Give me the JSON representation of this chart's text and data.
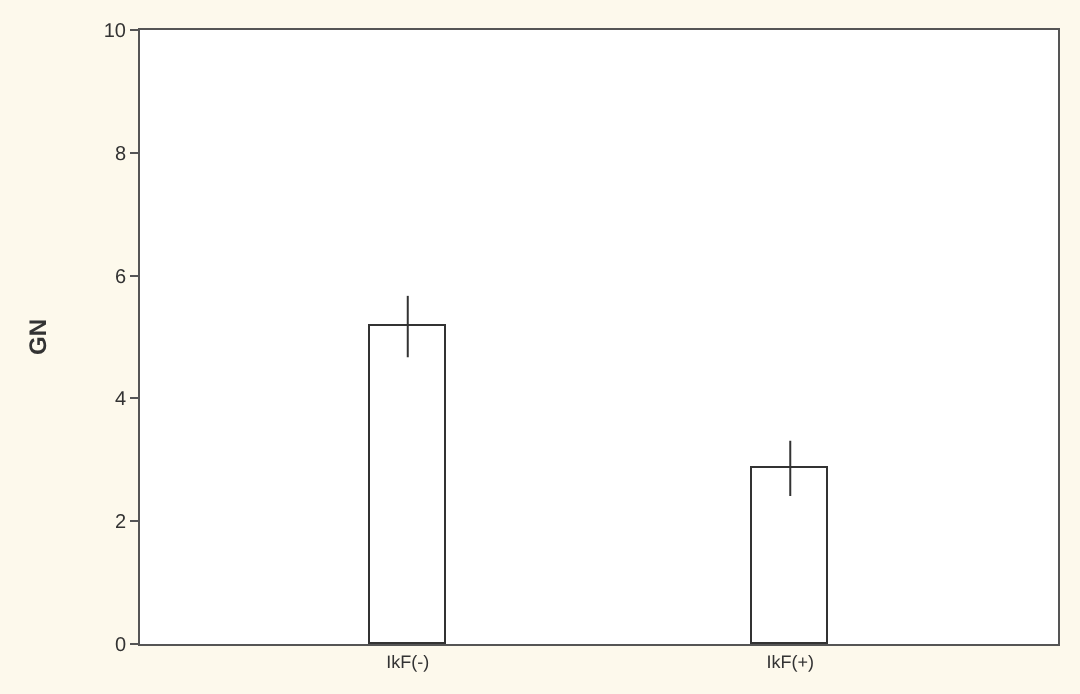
{
  "chart_data": {
    "type": "bar",
    "ylabel": "GN",
    "categories": [
      "IkF(-)",
      "IkF(+)"
    ],
    "series": [
      {
        "color": "#ffffff",
        "values": [
          5.17,
          2.86
        ],
        "errors": [
          0.5,
          0.45
        ]
      }
    ],
    "ylim": [
      0,
      10
    ],
    "yticks": [
      0,
      2,
      4,
      6,
      8,
      10
    ]
  }
}
